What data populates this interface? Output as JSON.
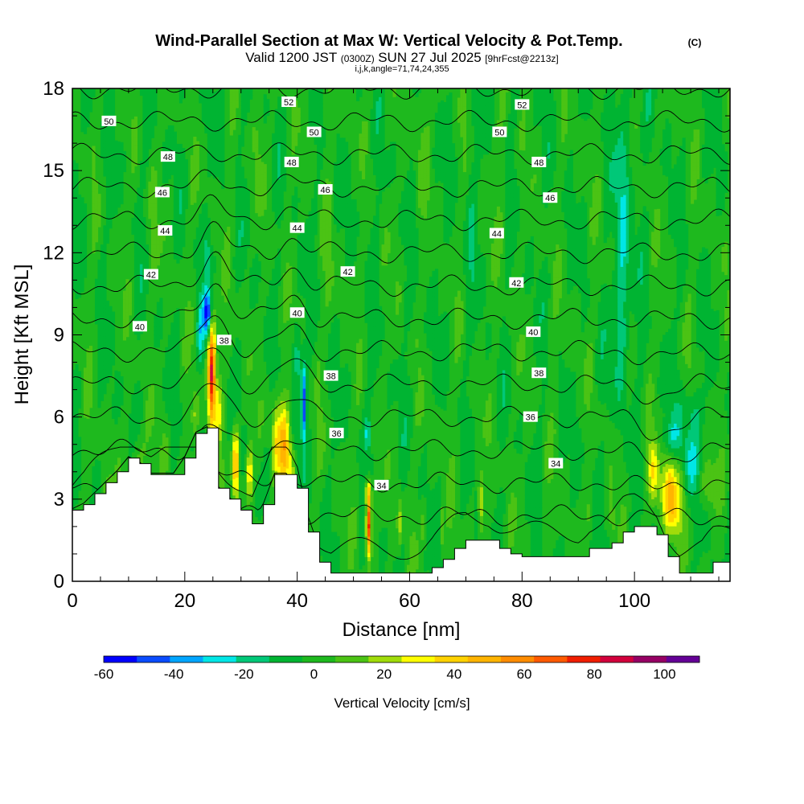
{
  "header": {
    "title_main": "Wind-Parallel Section at Max W: Vertical Velocity & Pot.Temp.",
    "title_mark": "(C)",
    "valid_prefix": "Valid 1200 JST",
    "valid_utc": "(0300Z)",
    "valid_date": "SUN 27 Jul 2025",
    "valid_fcst": "[9hrFcst@2213z]",
    "indices": "i,j,k,angle=71,74,24,355"
  },
  "chart_data": {
    "type": "heatmap",
    "xlabel": "Distance [nm]",
    "ylabel": "Height [Kft MSL]",
    "xlim": [
      0,
      117
    ],
    "ylim": [
      0,
      18
    ],
    "x_ticks": [
      0,
      20,
      40,
      60,
      80,
      100
    ],
    "y_ticks": [
      0,
      3,
      6,
      9,
      12,
      15,
      18
    ],
    "grid": false,
    "colorbar": {
      "label": "Vertical Velocity [cm/s]",
      "placement": "bottom",
      "bounds": [
        -60,
        110
      ],
      "step": 10,
      "tick_values": [
        -60,
        -40,
        -20,
        0,
        20,
        40,
        60,
        80,
        100
      ],
      "colors": [
        "#0000ff",
        "#0a4cff",
        "#00a5ff",
        "#00e6e6",
        "#00c878",
        "#00b432",
        "#1eb91e",
        "#4bc314",
        "#a0dc0a",
        "#ffff00",
        "#ffd200",
        "#ffb400",
        "#ff8c00",
        "#ff5a00",
        "#f01e00",
        "#d2003c",
        "#960064",
        "#640096"
      ]
    },
    "terrain": {
      "x": [
        0,
        2,
        4,
        6,
        8,
        10,
        12,
        14,
        16,
        18,
        20,
        22,
        24,
        26,
        28,
        30,
        32,
        34,
        36,
        38,
        40,
        42,
        44,
        46,
        48,
        50,
        52,
        54,
        56,
        58,
        60,
        62,
        64,
        66,
        68,
        70,
        72,
        74,
        76,
        78,
        80,
        82,
        84,
        86,
        88,
        90,
        92,
        94,
        96,
        98,
        100,
        102,
        104,
        106,
        108,
        110,
        112,
        114,
        117
      ],
      "y": [
        2.6,
        2.8,
        3.2,
        3.6,
        4.0,
        4.5,
        4.3,
        3.9,
        3.9,
        3.9,
        4.5,
        5.4,
        5.6,
        3.4,
        3.0,
        2.6,
        2.1,
        2.8,
        3.9,
        3.9,
        3.4,
        1.8,
        0.7,
        0.3,
        0.3,
        0.3,
        0.3,
        0.3,
        0.3,
        0.3,
        0.3,
        0.3,
        0.5,
        0.8,
        1.2,
        1.5,
        1.5,
        1.5,
        1.2,
        1.0,
        0.9,
        0.9,
        0.9,
        0.9,
        0.9,
        0.9,
        1.2,
        1.2,
        1.4,
        1.8,
        2.0,
        2.0,
        1.7,
        0.9,
        0.3,
        0.3,
        0.3,
        0.7,
        0.9
      ]
    },
    "theta_contour_levels": [
      34,
      35,
      36,
      37,
      38,
      39,
      40,
      41,
      42,
      43,
      44,
      45,
      46,
      47,
      48,
      49,
      50,
      51,
      52,
      53
    ],
    "theta_labels": [
      {
        "text": "50",
        "x": 6.5,
        "y": 16.8
      },
      {
        "text": "48",
        "x": 17,
        "y": 15.5
      },
      {
        "text": "46",
        "x": 16,
        "y": 14.2
      },
      {
        "text": "44",
        "x": 16.5,
        "y": 12.8
      },
      {
        "text": "42",
        "x": 14,
        "y": 11.2
      },
      {
        "text": "40",
        "x": 12,
        "y": 9.3
      },
      {
        "text": "52",
        "x": 38.5,
        "y": 17.5
      },
      {
        "text": "50",
        "x": 43,
        "y": 16.4
      },
      {
        "text": "48",
        "x": 39,
        "y": 15.3
      },
      {
        "text": "46",
        "x": 45,
        "y": 14.3
      },
      {
        "text": "44",
        "x": 40,
        "y": 12.9
      },
      {
        "text": "42",
        "x": 49,
        "y": 11.3
      },
      {
        "text": "40",
        "x": 40,
        "y": 9.8
      },
      {
        "text": "38",
        "x": 27,
        "y": 8.8
      },
      {
        "text": "38",
        "x": 46,
        "y": 7.5
      },
      {
        "text": "36",
        "x": 47,
        "y": 5.4
      },
      {
        "text": "34",
        "x": 55,
        "y": 3.5
      },
      {
        "text": "52",
        "x": 80,
        "y": 17.4
      },
      {
        "text": "50",
        "x": 76,
        "y": 16.4
      },
      {
        "text": "48",
        "x": 83,
        "y": 15.3
      },
      {
        "text": "46",
        "x": 85,
        "y": 14.0
      },
      {
        "text": "44",
        "x": 75.5,
        "y": 12.7
      },
      {
        "text": "42",
        "x": 79,
        "y": 10.9
      },
      {
        "text": "40",
        "x": 82,
        "y": 9.1
      },
      {
        "text": "38",
        "x": 83,
        "y": 7.6
      },
      {
        "text": "36",
        "x": 81.5,
        "y": 6.0
      },
      {
        "text": "34",
        "x": 86,
        "y": 4.3
      }
    ]
  }
}
